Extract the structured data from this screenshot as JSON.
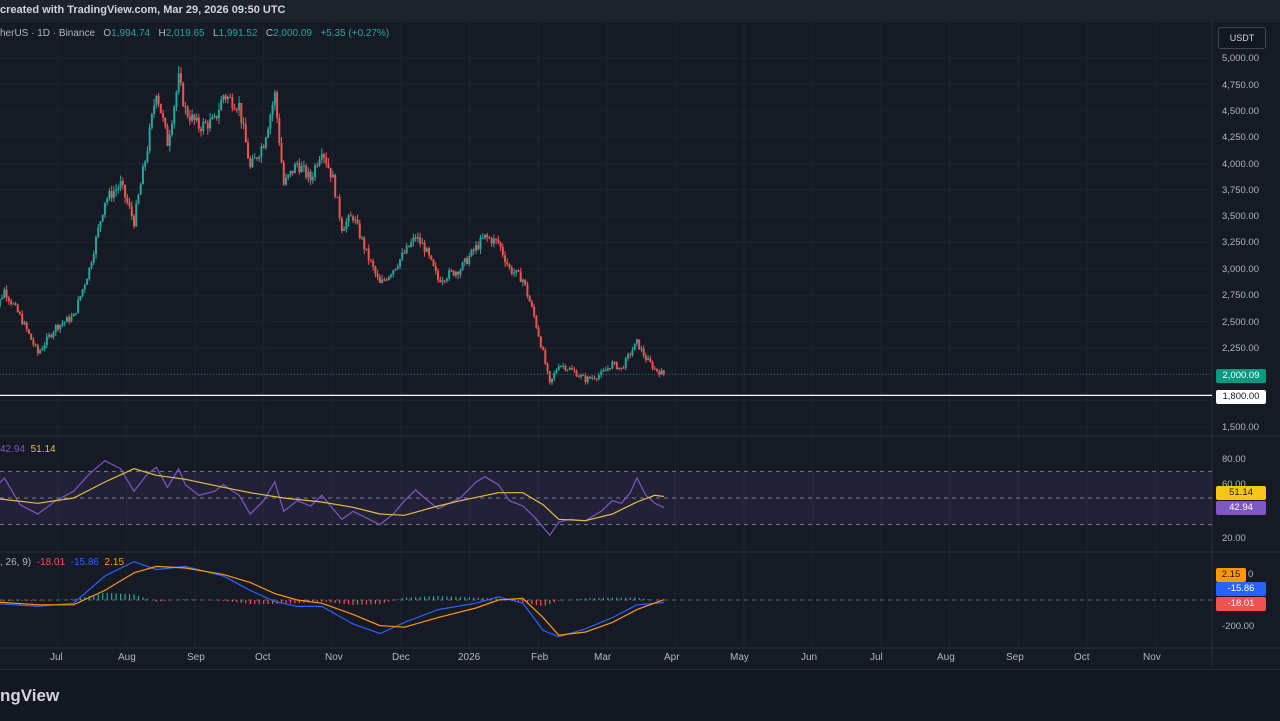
{
  "header": {
    "caption": "created with TradingView.com, Mar 29, 2026 09:50 UTC"
  },
  "symbol_line": {
    "symbol": "herUS · 1D · Binance",
    "open_label": "O",
    "open": "1,994.74",
    "high_label": "H",
    "high": "2,019.65",
    "low_label": "L",
    "low": "1,991.52",
    "close_label": "C",
    "close": "2,000.09",
    "change": "+5.35 (+0.27%)"
  },
  "currency_button": "USDT",
  "price_axis": [
    "5,000.00",
    "4,750.00",
    "4,500.00",
    "4,250.00",
    "4,000.00",
    "3,750.00",
    "3,500.00",
    "3,250.00",
    "3,000.00",
    "2,750.00",
    "2,500.00",
    "2,250.00",
    "1,500.00"
  ],
  "price_tags": {
    "last": "2,000.09",
    "level": "1,800.00"
  },
  "rsi": {
    "legend_value": "42.94",
    "legend_ma": "51.14",
    "axis": [
      "80.00",
      "60.00",
      "20.00"
    ],
    "tag_ma": "51.14",
    "tag_value": "42.94"
  },
  "macd": {
    "legend_params": ", 26, 9)",
    "legend_hist": "-18.01",
    "legend_macd": "-15.86",
    "legend_signal": "2.15",
    "axis": [
      "0",
      "-200.00"
    ],
    "tag_signal": "2.15",
    "tag_macd": "-15.86",
    "tag_hist": "-18.01"
  },
  "time_axis": [
    "Jul",
    "Aug",
    "Sep",
    "Oct",
    "Nov",
    "Dec",
    "2026",
    "Feb",
    "Mar",
    "Apr",
    "May",
    "Jun",
    "Jul",
    "Aug",
    "Sep",
    "Oct",
    "Nov"
  ],
  "colors": {
    "up": "#26a69a",
    "down": "#ef5350",
    "rsi": "#7e57c2",
    "rsi_ma": "#e0c040",
    "macd": "#2962ff",
    "signal": "#ff9800",
    "background": "#131722"
  },
  "footer": {
    "brand": "ngView"
  },
  "chart_data": {
    "type": "candlestick",
    "interval": "1D",
    "close_path": [
      [
        "2025-06-01",
        2500
      ],
      [
        "2025-06-07",
        2800
      ],
      [
        "2025-06-14",
        2550
      ],
      [
        "2025-06-22",
        2200
      ],
      [
        "2025-06-30",
        2450
      ],
      [
        "2025-07-08",
        2550
      ],
      [
        "2025-07-15",
        3000
      ],
      [
        "2025-07-22",
        3650
      ],
      [
        "2025-07-29",
        3800
      ],
      [
        "2025-08-04",
        3450
      ],
      [
        "2025-08-10",
        4150
      ],
      [
        "2025-08-14",
        4700
      ],
      [
        "2025-08-19",
        4200
      ],
      [
        "2025-08-24",
        4800
      ],
      [
        "2025-08-27",
        4500
      ],
      [
        "2025-09-02",
        4350
      ],
      [
        "2025-09-09",
        4400
      ],
      [
        "2025-09-13",
        4650
      ],
      [
        "2025-09-20",
        4550
      ],
      [
        "2025-09-25",
        3950
      ],
      [
        "2025-10-01",
        4200
      ],
      [
        "2025-10-06",
        4650
      ],
      [
        "2025-10-10",
        3800
      ],
      [
        "2025-10-16",
        4000
      ],
      [
        "2025-10-22",
        3850
      ],
      [
        "2025-10-27",
        4150
      ],
      [
        "2025-11-01",
        3850
      ],
      [
        "2025-11-05",
        3400
      ],
      [
        "2025-11-10",
        3500
      ],
      [
        "2025-11-16",
        3150
      ],
      [
        "2025-11-22",
        2850
      ],
      [
        "2025-11-28",
        3000
      ],
      [
        "2025-12-03",
        3150
      ],
      [
        "2025-12-08",
        3300
      ],
      [
        "2025-12-12",
        3200
      ],
      [
        "2025-12-18",
        2900
      ],
      [
        "2025-12-23",
        2950
      ],
      [
        "2025-12-28",
        3000
      ],
      [
        "2026-01-04",
        3200
      ],
      [
        "2026-01-08",
        3300
      ],
      [
        "2026-01-14",
        3250
      ],
      [
        "2026-01-19",
        3000
      ],
      [
        "2026-01-25",
        2900
      ],
      [
        "2026-01-30",
        2550
      ],
      [
        "2026-02-03",
        2200
      ],
      [
        "2026-02-06",
        1900
      ],
      [
        "2026-02-10",
        2100
      ],
      [
        "2026-02-15",
        2050
      ],
      [
        "2026-02-22",
        1950
      ],
      [
        "2026-03-01",
        2000
      ],
      [
        "2026-03-06",
        2100
      ],
      [
        "2026-03-10",
        2050
      ],
      [
        "2026-03-14",
        2200
      ],
      [
        "2026-03-17",
        2300
      ],
      [
        "2026-03-21",
        2150
      ],
      [
        "2026-03-25",
        2050
      ],
      [
        "2026-03-29",
        2000.09
      ]
    ],
    "last": {
      "open": 1994.74,
      "high": 2019.65,
      "low": 1991.52,
      "close": 2000.09
    },
    "horizontal_level": 1800,
    "price_ylim": [
      1500,
      5000
    ],
    "rsi_series": [
      [
        "2025-06-01",
        55
      ],
      [
        "2025-06-07",
        65
      ],
      [
        "2025-06-14",
        45
      ],
      [
        "2025-06-22",
        38
      ],
      [
        "2025-06-30",
        48
      ],
      [
        "2025-07-08",
        55
      ],
      [
        "2025-07-15",
        68
      ],
      [
        "2025-07-22",
        78
      ],
      [
        "2025-07-29",
        72
      ],
      [
        "2025-08-04",
        55
      ],
      [
        "2025-08-10",
        68
      ],
      [
        "2025-08-14",
        73
      ],
      [
        "2025-08-19",
        58
      ],
      [
        "2025-08-24",
        72
      ],
      [
        "2025-08-27",
        60
      ],
      [
        "2025-09-02",
        52
      ],
      [
        "2025-09-09",
        55
      ],
      [
        "2025-09-13",
        60
      ],
      [
        "2025-09-20",
        52
      ],
      [
        "2025-09-25",
        38
      ],
      [
        "2025-10-01",
        48
      ],
      [
        "2025-10-06",
        62
      ],
      [
        "2025-10-10",
        40
      ],
      [
        "2025-10-16",
        48
      ],
      [
        "2025-10-22",
        44
      ],
      [
        "2025-10-27",
        52
      ],
      [
        "2025-11-01",
        42
      ],
      [
        "2025-11-05",
        34
      ],
      [
        "2025-11-10",
        40
      ],
      [
        "2025-11-16",
        35
      ],
      [
        "2025-11-22",
        30
      ],
      [
        "2025-11-28",
        38
      ],
      [
        "2025-12-03",
        48
      ],
      [
        "2025-12-08",
        56
      ],
      [
        "2025-12-12",
        50
      ],
      [
        "2025-12-18",
        42
      ],
      [
        "2025-12-23",
        46
      ],
      [
        "2025-12-28",
        50
      ],
      [
        "2026-01-04",
        62
      ],
      [
        "2026-01-08",
        66
      ],
      [
        "2026-01-14",
        60
      ],
      [
        "2026-01-19",
        48
      ],
      [
        "2026-01-25",
        44
      ],
      [
        "2026-01-30",
        36
      ],
      [
        "2026-02-03",
        28
      ],
      [
        "2026-02-06",
        22
      ],
      [
        "2026-02-10",
        32
      ],
      [
        "2026-02-15",
        34
      ],
      [
        "2026-02-22",
        33
      ],
      [
        "2026-03-01",
        40
      ],
      [
        "2026-03-06",
        48
      ],
      [
        "2026-03-10",
        46
      ],
      [
        "2026-03-14",
        54
      ],
      [
        "2026-03-17",
        65
      ],
      [
        "2026-03-21",
        52
      ],
      [
        "2026-03-25",
        46
      ],
      [
        "2026-03-29",
        42.94
      ]
    ],
    "rsi_ma_series": [
      [
        "2025-06-01",
        50
      ],
      [
        "2025-06-22",
        46
      ],
      [
        "2025-07-08",
        50
      ],
      [
        "2025-07-22",
        62
      ],
      [
        "2025-08-04",
        72
      ],
      [
        "2025-08-14",
        67
      ],
      [
        "2025-08-27",
        64
      ],
      [
        "2025-09-13",
        58
      ],
      [
        "2025-09-25",
        54
      ],
      [
        "2025-10-10",
        50
      ],
      [
        "2025-10-27",
        47
      ],
      [
        "2025-11-10",
        43
      ],
      [
        "2025-11-22",
        38
      ],
      [
        "2025-12-03",
        37
      ],
      [
        "2025-12-18",
        44
      ],
      [
        "2025-12-28",
        48
      ],
      [
        "2026-01-14",
        54
      ],
      [
        "2026-01-25",
        54
      ],
      [
        "2026-02-03",
        45
      ],
      [
        "2026-02-10",
        34
      ],
      [
        "2026-02-22",
        33
      ],
      [
        "2026-03-06",
        38
      ],
      [
        "2026-03-17",
        47
      ],
      [
        "2026-03-25",
        52
      ],
      [
        "2026-03-29",
        51.14
      ]
    ],
    "rsi_ylim": [
      20,
      80
    ],
    "rsi_levels": [
      70,
      50,
      30
    ],
    "macd_series": [
      [
        "2025-06-01",
        -20
      ],
      [
        "2025-06-22",
        -40
      ],
      [
        "2025-07-08",
        -20
      ],
      [
        "2025-07-22",
        150
      ],
      [
        "2025-08-04",
        240
      ],
      [
        "2025-08-14",
        190
      ],
      [
        "2025-08-27",
        210
      ],
      [
        "2025-09-13",
        150
      ],
      [
        "2025-09-25",
        60
      ],
      [
        "2025-10-06",
        -10
      ],
      [
        "2025-10-16",
        -40
      ],
      [
        "2025-10-27",
        -40
      ],
      [
        "2025-11-10",
        -150
      ],
      [
        "2025-11-22",
        -210
      ],
      [
        "2025-12-03",
        -140
      ],
      [
        "2025-12-18",
        -60
      ],
      [
        "2026-01-04",
        -20
      ],
      [
        "2026-01-14",
        20
      ],
      [
        "2026-01-25",
        -20
      ],
      [
        "2026-02-03",
        -190
      ],
      [
        "2026-02-10",
        -230
      ],
      [
        "2026-02-22",
        -180
      ],
      [
        "2026-03-06",
        -110
      ],
      [
        "2026-03-17",
        -30
      ],
      [
        "2026-03-29",
        -15.86
      ]
    ],
    "signal_series": [
      [
        "2025-06-01",
        -10
      ],
      [
        "2025-06-22",
        -30
      ],
      [
        "2025-07-08",
        -30
      ],
      [
        "2025-07-22",
        60
      ],
      [
        "2025-08-04",
        170
      ],
      [
        "2025-08-14",
        210
      ],
      [
        "2025-08-27",
        200
      ],
      [
        "2025-09-13",
        160
      ],
      [
        "2025-09-25",
        110
      ],
      [
        "2025-10-06",
        40
      ],
      [
        "2025-10-16",
        0
      ],
      [
        "2025-10-27",
        -20
      ],
      [
        "2025-11-10",
        -90
      ],
      [
        "2025-11-22",
        -160
      ],
      [
        "2025-12-03",
        -170
      ],
      [
        "2025-12-18",
        -110
      ],
      [
        "2026-01-04",
        -50
      ],
      [
        "2026-01-14",
        0
      ],
      [
        "2026-01-25",
        10
      ],
      [
        "2026-02-03",
        -110
      ],
      [
        "2026-02-10",
        -220
      ],
      [
        "2026-02-22",
        -200
      ],
      [
        "2026-03-06",
        -140
      ],
      [
        "2026-03-17",
        -60
      ],
      [
        "2026-03-29",
        2.15
      ]
    ],
    "macd_ylim": [
      -250,
      250
    ]
  }
}
